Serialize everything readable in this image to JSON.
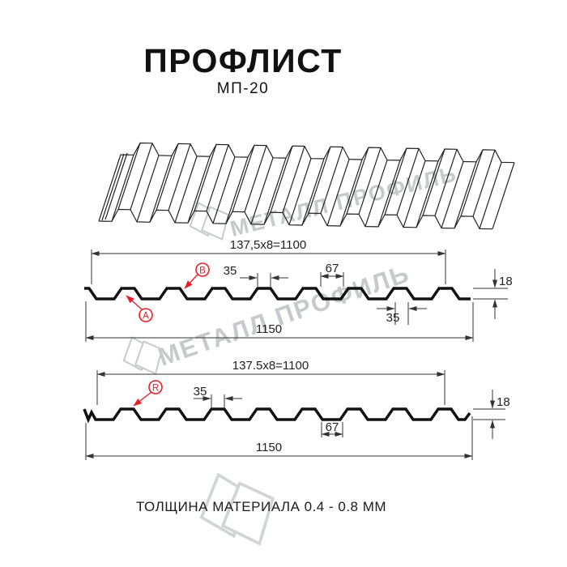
{
  "page": {
    "title": "ПРОФЛИСТ",
    "subtitle": "МП-20",
    "footer_note": "ТОЛЩИНА МАТЕРИАЛА 0.4 - 0.8 ММ"
  },
  "watermark": {
    "brand_text": "МЕТАЛЛ ПРОФИЛЬ",
    "color": "#c7cacd"
  },
  "colors": {
    "accent_red": "#ee1c25",
    "line_color": "#111111",
    "dim_color": "#333333"
  },
  "profile_spec": {
    "name": "МП-20",
    "drawing1": {
      "span_top": "137,5x8=1100",
      "rib_top_width": "35",
      "valley_width": "67",
      "profile_height": "18",
      "rib_bottom_width": "35",
      "overall_width": "1150",
      "label_a": "A",
      "label_b": "B"
    },
    "drawing2": {
      "span_top": "137.5x8=1100",
      "rib_top_width": "35",
      "valley_width": "67",
      "profile_height": "18",
      "overall_width": "1150",
      "label_r": "R"
    }
  }
}
